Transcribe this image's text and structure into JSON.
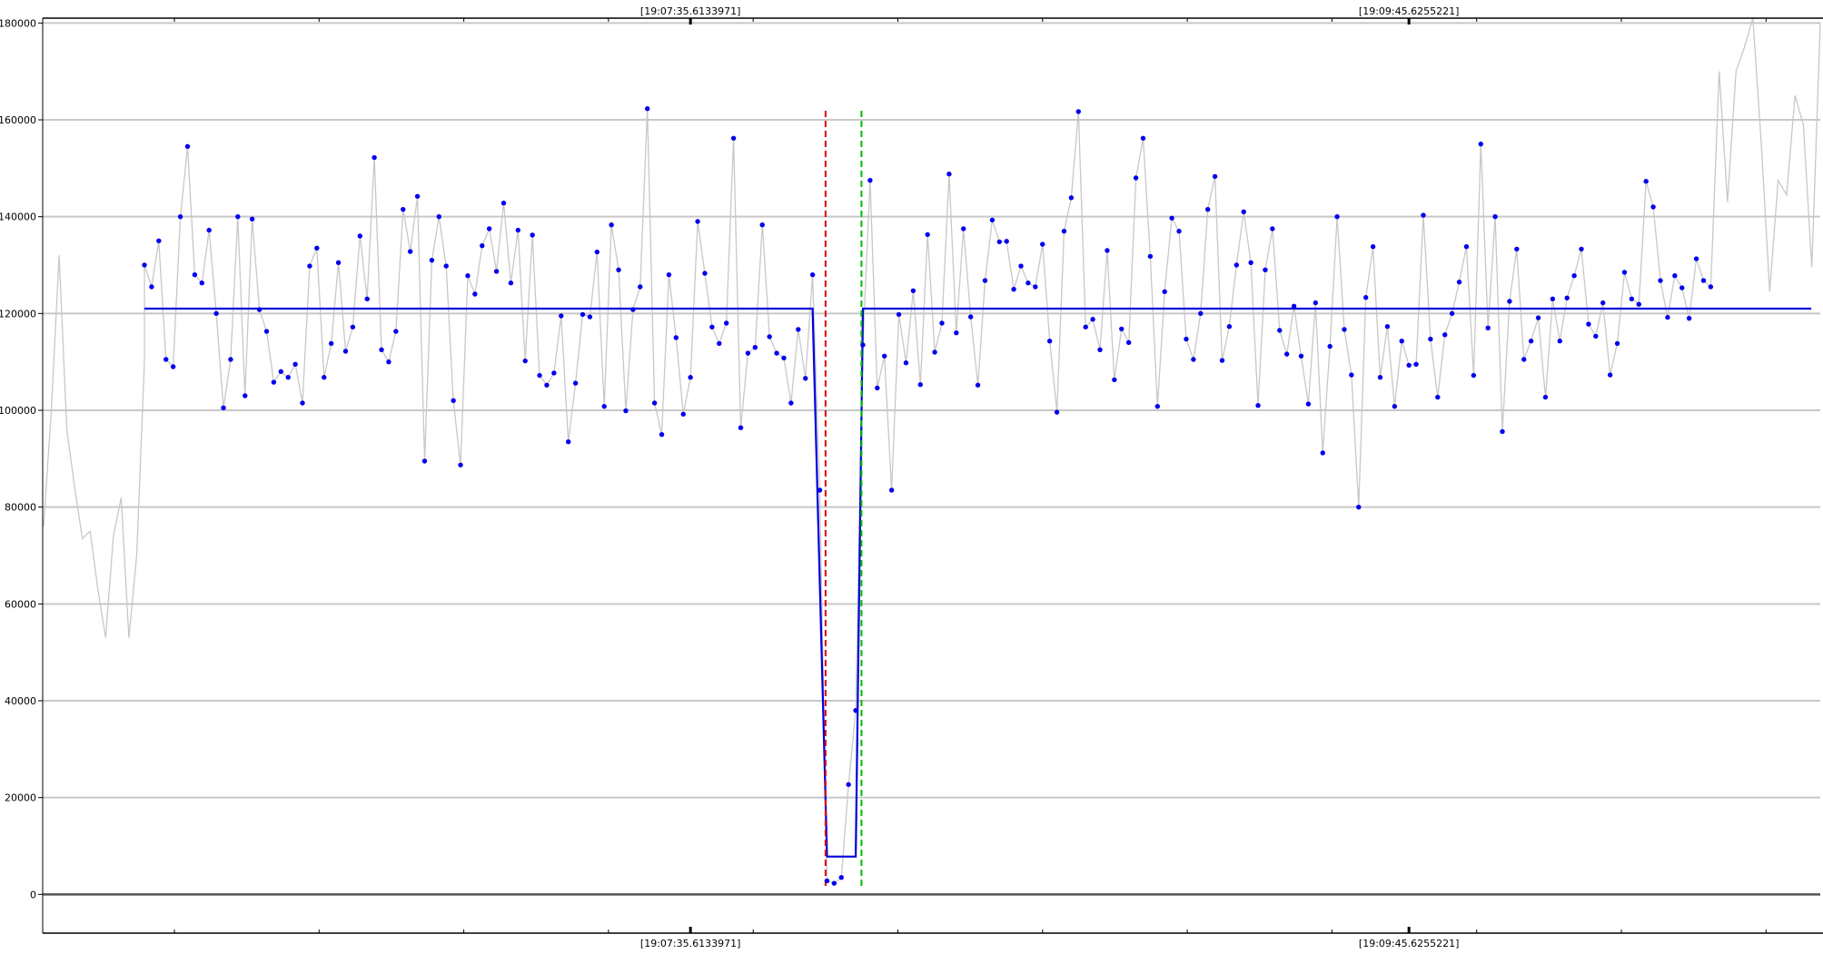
{
  "chart_data": {
    "type": "line",
    "ylim": [
      -8000,
      181000
    ],
    "y_ticks": [
      0,
      20000,
      40000,
      60000,
      80000,
      100000,
      120000,
      140000,
      160000,
      180000
    ],
    "y_tick_labels": [
      "0",
      "20000",
      "40000",
      "60000",
      "80000",
      "100000",
      "120000",
      "140000",
      "160000",
      "180000"
    ],
    "grid": true,
    "time_labels": [
      "[19:07:35.6133971]",
      "[19:09:45.6255221]"
    ],
    "time_label_sample_index": [
      76,
      176
    ],
    "grey_series_pre": [
      76000,
      100000,
      132000,
      96000,
      84000,
      73500,
      75000,
      63000,
      53000,
      74000,
      82000,
      53000,
      70000,
      110000
    ],
    "blue_series": [
      130000,
      125500,
      135000,
      110500,
      109000,
      140000,
      154500,
      128000,
      126300,
      137200,
      120000,
      100500,
      110500,
      140000,
      103000,
      139500,
      120800,
      116300,
      105800,
      108000,
      106800,
      109500,
      101500,
      129800,
      133500,
      106800,
      113800,
      130500,
      112200,
      117200,
      136000,
      123000,
      152200,
      112500,
      110000,
      116300,
      141500,
      132800,
      144200,
      89500,
      131000,
      140000,
      129800,
      102000,
      88700,
      127800,
      124000,
      134000,
      137500,
      128700,
      142800,
      126300,
      137200,
      110200,
      136200,
      107200,
      105200,
      107700,
      119500,
      93500,
      105600,
      119800,
      119300,
      132700,
      100800,
      138300,
      129000,
      99900,
      120800,
      125500,
      162300,
      101500,
      95000,
      128000,
      115000,
      99200,
      106800,
      139000,
      128300,
      117200,
      113800,
      118000,
      156200,
      96400,
      111800,
      113000,
      138300,
      115200,
      111800,
      110800,
      101500,
      116700,
      106600,
      128000,
      83500,
      2800,
      2300,
      3500,
      22700,
      38000,
      113500,
      147500,
      104600,
      111200,
      83500,
      119800,
      109800,
      124700,
      105300,
      136300,
      112000,
      118000,
      148800,
      116000,
      137500,
      119300,
      105200,
      126800,
      139300,
      134800,
      134900,
      125000,
      129800,
      126300,
      125500,
      134300,
      114300,
      99600,
      137000,
      143900,
      161700,
      117200,
      118800,
      112500,
      133000,
      106300,
      116800,
      114000,
      148000,
      156200,
      131800,
      100800,
      124500,
      139700,
      137000,
      114700,
      110500,
      120000,
      141500,
      148300,
      110300,
      117300,
      130000,
      141000,
      130500,
      101000,
      129000,
      137500,
      116500,
      111600,
      121500,
      111200,
      101300,
      122200,
      91200,
      113200,
      140000,
      116700,
      107300,
      80000,
      123300,
      133800,
      106800,
      117300,
      100800,
      114300,
      109300,
      109500,
      140300,
      114700,
      102700,
      115600,
      120000,
      126500,
      133800,
      107200,
      155000,
      117000,
      140000,
      95600,
      122500,
      133300,
      110500,
      114300,
      119100,
      102700,
      123000,
      114300,
      123200,
      127800,
      133300,
      117800,
      115300,
      122200,
      107300,
      113800,
      128500,
      123000,
      121900,
      147300,
      142000,
      126800,
      119200,
      127800,
      125300,
      119000,
      131300,
      126800,
      125500
    ],
    "grey_series_post": [
      125500,
      170000,
      143000,
      170000,
      175000,
      181000,
      155000,
      124500,
      147500,
      144500,
      165000,
      159000,
      129500,
      180000
    ],
    "mean_segments": [
      {
        "from_index": 0,
        "to_index": 93,
        "value": 121000
      },
      {
        "from_index": 95,
        "to_index": 99,
        "value": 7800
      },
      {
        "from_index": 100,
        "to_index": 232,
        "value": 121000
      }
    ],
    "vertical_markers": [
      {
        "color": "#dd0000",
        "sample_index": 94.8
      },
      {
        "color": "#00bb00",
        "sample_index": 99.8
      }
    ],
    "colors": {
      "raw_line": "#c8c8c8",
      "points": "#0000ee",
      "mean_line": "#0000dd",
      "grid": "#c8c8c8"
    }
  }
}
